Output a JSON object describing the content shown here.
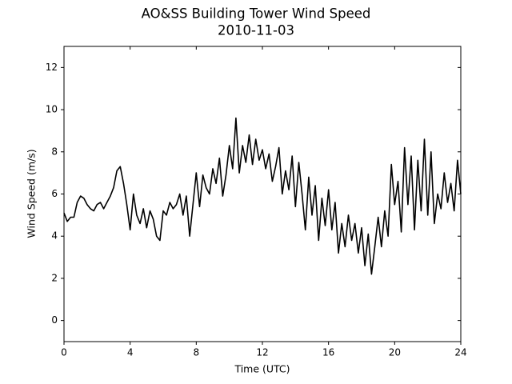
{
  "chart_data": {
    "type": "line",
    "title": "AO&SS Building Tower Wind Speed",
    "subtitle": "2010-11-03",
    "x_label": "Time (UTC)",
    "y_label": "Wind Speed (m/s)",
    "xlim": [
      0,
      24
    ],
    "xticks": [
      0,
      4,
      8,
      12,
      16,
      20,
      24
    ],
    "ylim": [
      -1,
      13
    ],
    "yticks": [
      0,
      2,
      4,
      6,
      8,
      10,
      12
    ],
    "x": [
      0,
      0.2,
      0.4,
      0.6,
      0.8,
      1.0,
      1.2,
      1.4,
      1.6,
      1.8,
      2.0,
      2.2,
      2.4,
      2.6,
      2.8,
      3.0,
      3.2,
      3.4,
      3.6,
      3.8,
      4.0,
      4.2,
      4.4,
      4.6,
      4.8,
      5.0,
      5.2,
      5.4,
      5.6,
      5.8,
      6.0,
      6.2,
      6.4,
      6.6,
      6.8,
      7.0,
      7.2,
      7.4,
      7.6,
      7.8,
      8.0,
      8.2,
      8.4,
      8.6,
      8.8,
      9.0,
      9.2,
      9.4,
      9.6,
      9.8,
      10.0,
      10.2,
      10.4,
      10.6,
      10.8,
      11.0,
      11.2,
      11.4,
      11.6,
      11.8,
      12.0,
      12.2,
      12.4,
      12.6,
      12.8,
      13.0,
      13.2,
      13.4,
      13.6,
      13.8,
      14.0,
      14.2,
      14.4,
      14.6,
      14.8,
      15.0,
      15.2,
      15.4,
      15.6,
      15.8,
      16.0,
      16.2,
      16.4,
      16.6,
      16.8,
      17.0,
      17.2,
      17.4,
      17.6,
      17.8,
      18.0,
      18.2,
      18.4,
      18.6,
      18.8,
      19.0,
      19.2,
      19.4,
      19.6,
      19.8,
      20.0,
      20.2,
      20.4,
      20.6,
      20.8,
      21.0,
      21.2,
      21.4,
      21.6,
      21.8,
      22.0,
      22.2,
      22.4,
      22.6,
      22.8,
      23.0,
      23.2,
      23.4,
      23.6,
      23.8,
      24.0
    ],
    "series": [
      {
        "name": "Wind Speed",
        "color": "#000000",
        "values": [
          5.1,
          4.7,
          4.9,
          4.9,
          5.6,
          5.9,
          5.8,
          5.5,
          5.3,
          5.2,
          5.5,
          5.6,
          5.3,
          5.6,
          5.9,
          6.3,
          7.1,
          7.3,
          6.5,
          5.5,
          4.3,
          6.0,
          5.0,
          4.6,
          5.3,
          4.4,
          5.2,
          4.8,
          4.0,
          3.8,
          5.2,
          5.0,
          5.6,
          5.3,
          5.5,
          6.0,
          5.0,
          5.9,
          4.0,
          5.5,
          7.0,
          5.4,
          6.9,
          6.3,
          6.0,
          7.2,
          6.5,
          7.7,
          5.9,
          6.9,
          8.3,
          7.2,
          9.6,
          7.0,
          8.3,
          7.5,
          8.8,
          7.4,
          8.6,
          7.6,
          8.1,
          7.2,
          7.9,
          6.6,
          7.3,
          8.2,
          6.0,
          7.1,
          6.2,
          7.8,
          5.4,
          7.5,
          6.0,
          4.3,
          6.8,
          5.0,
          6.4,
          3.8,
          5.8,
          4.5,
          6.2,
          4.3,
          5.6,
          3.2,
          4.6,
          3.5,
          5.0,
          3.8,
          4.6,
          3.2,
          4.4,
          2.6,
          4.1,
          2.2,
          3.5,
          4.9,
          3.5,
          5.2,
          4.0,
          7.4,
          5.5,
          6.6,
          4.2,
          8.2,
          5.5,
          7.8,
          4.3,
          7.6,
          5.2,
          8.6,
          5.0,
          8.0,
          4.6,
          6.0,
          5.3,
          7.0,
          5.6,
          6.5,
          5.2,
          7.6,
          6.0
        ]
      }
    ]
  }
}
